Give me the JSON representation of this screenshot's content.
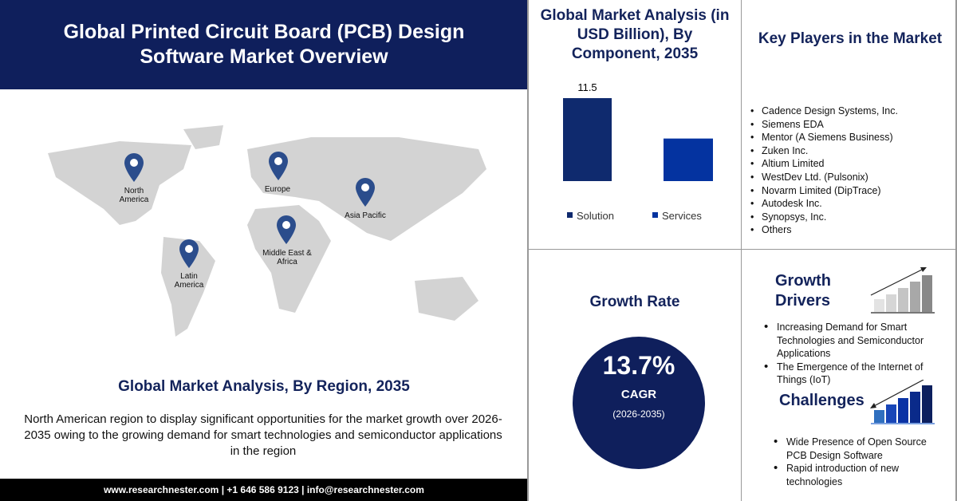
{
  "header": {
    "title": "Global Printed Circuit Board (PCB) Design Software Market Overview"
  },
  "map": {
    "regions": [
      {
        "label": "North America"
      },
      {
        "label": "Europe"
      },
      {
        "label": "Asia Pacific"
      },
      {
        "label": "Middle East & Africa"
      },
      {
        "label": "Latin America"
      }
    ],
    "pin_color": "#2b4d8c",
    "land_color": "#d3d3d3"
  },
  "region_section": {
    "title": "Global Market Analysis, By Region, 2035",
    "description": "North American region to display significant opportunities for the market growth over 2026-2035 owing to the growing demand for smart technologies and semiconductor applications in the region"
  },
  "footer": {
    "text": "www.researchnester.com | +1 646 586 9123 | info@researchnester.com"
  },
  "chart_data": {
    "type": "bar",
    "title": "Global Market Analysis (in USD Billion), By Component, 2035",
    "categories": [
      "Solution",
      "Services"
    ],
    "series": [
      {
        "name": "Solution",
        "values": [
          11.5,
          null
        ],
        "color": "#0f2a6e"
      },
      {
        "name": "Services",
        "values": [
          null,
          5.9
        ],
        "color": "#0433a0"
      }
    ],
    "data_labels": [
      "11.5",
      ""
    ],
    "legend": "bottom",
    "grid": false
  },
  "key_players": {
    "title": "Key Players in the Market",
    "items": [
      "Cadence Design Systems, Inc.",
      "Siemens EDA",
      "Mentor (A Siemens Business)",
      "Zuken Inc.",
      "Altium Limited",
      "WestDev Ltd. (Pulsonix)",
      "Novarm Limited (DipTrace)",
      "Autodesk Inc.",
      "Synopsys, Inc.",
      "Others"
    ]
  },
  "growth_rate": {
    "title": "Growth Rate",
    "value": "13.7%",
    "label": "CAGR",
    "period": "(2026-2035)"
  },
  "growth_drivers": {
    "title": "Growth Drivers",
    "items": [
      "Increasing Demand for Smart Technologies and Semiconductor Applications",
      "The Emergence of the Internet of Things (IoT)"
    ]
  },
  "challenges": {
    "title": "Challenges",
    "items": [
      "Wide Presence of Open Source PCB Design Software",
      "Rapid introduction of new technologies"
    ]
  }
}
